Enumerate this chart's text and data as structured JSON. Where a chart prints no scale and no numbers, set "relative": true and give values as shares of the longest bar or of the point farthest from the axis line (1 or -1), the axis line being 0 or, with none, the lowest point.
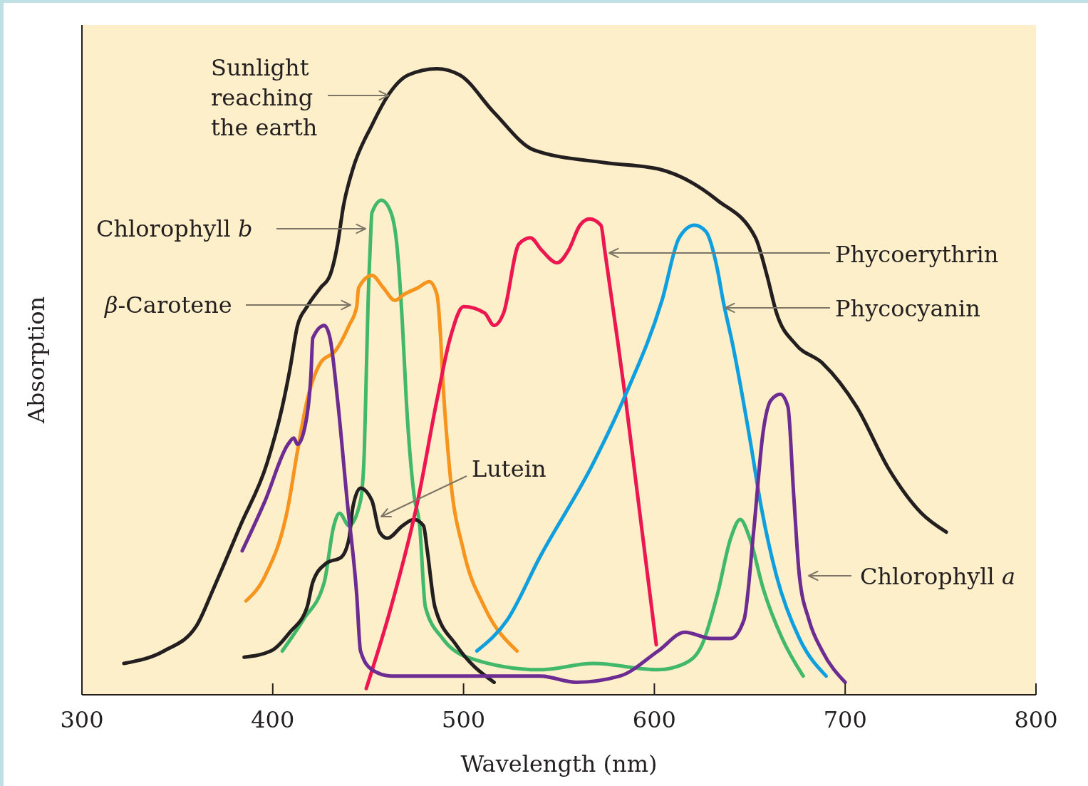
{
  "chart_data": {
    "type": "line",
    "xlabel": "Wavelength (nm)",
    "ylabel": "Absorption",
    "relative": true,
    "xlim": [
      300,
      800
    ],
    "xticks": [
      300,
      400,
      500,
      600,
      700,
      800
    ],
    "series": [
      {
        "name": "Sunlight reaching the earth",
        "color": "#231f20",
        "x": [
          322,
          343,
          360,
          369,
          383,
          397,
          405,
          409,
          413,
          418,
          425,
          430,
          434,
          437,
          442,
          452,
          461,
          471,
          486,
          498,
          516,
          537,
          574,
          602,
          633,
          653,
          659,
          664,
          674,
          688,
          706,
          723,
          740,
          753
        ],
        "values": [
          0.05,
          0.07,
          0.11,
          0.17,
          0.27,
          0.37,
          0.46,
          0.52,
          0.59,
          0.62,
          0.65,
          0.67,
          0.72,
          0.78,
          0.84,
          0.91,
          0.96,
          0.99,
          1.0,
          0.99,
          0.93,
          0.87,
          0.85,
          0.84,
          0.79,
          0.73,
          0.67,
          0.61,
          0.56,
          0.53,
          0.46,
          0.36,
          0.29,
          0.26
        ]
      },
      {
        "name": "Chlorophyll b",
        "color": "#41b86a",
        "x": [
          405,
          416,
          427,
          432,
          435,
          440,
          446,
          448,
          449,
          450,
          451,
          452,
          457,
          462,
          465,
          468,
          470,
          474,
          477,
          480,
          489,
          502,
          540,
          568,
          602,
          616,
          625,
          633,
          640,
          645,
          650,
          657,
          667,
          678
        ],
        "values": [
          0.07,
          0.12,
          0.18,
          0.27,
          0.29,
          0.27,
          0.31,
          0.39,
          0.51,
          0.63,
          0.71,
          0.77,
          0.79,
          0.77,
          0.72,
          0.59,
          0.47,
          0.32,
          0.27,
          0.14,
          0.09,
          0.06,
          0.04,
          0.05,
          0.04,
          0.05,
          0.08,
          0.16,
          0.25,
          0.28,
          0.25,
          0.17,
          0.09,
          0.03
        ]
      },
      {
        "name": "β-Carotene",
        "color": "#f7941d",
        "x": [
          386,
          396,
          408,
          413,
          418,
          425,
          433,
          440,
          444,
          445,
          452,
          458,
          464,
          469,
          476,
          482,
          486,
          488,
          489,
          493,
          500,
          511,
          528
        ],
        "values": [
          0.15,
          0.19,
          0.3,
          0.39,
          0.47,
          0.53,
          0.55,
          0.59,
          0.62,
          0.65,
          0.67,
          0.65,
          0.63,
          0.64,
          0.65,
          0.66,
          0.64,
          0.57,
          0.51,
          0.35,
          0.23,
          0.14,
          0.07
        ]
      },
      {
        "name": "Lutein",
        "color": "#231f20",
        "x": [
          385,
          399,
          409,
          418,
          421,
          428,
          436,
          440,
          442,
          446,
          452,
          456,
          460,
          468,
          474,
          479,
          481,
          485,
          496,
          516
        ],
        "values": [
          0.06,
          0.07,
          0.1,
          0.14,
          0.18,
          0.21,
          0.22,
          0.25,
          0.3,
          0.33,
          0.31,
          0.26,
          0.25,
          0.27,
          0.28,
          0.27,
          0.23,
          0.14,
          0.08,
          0.02
        ]
      },
      {
        "name": "Phycoerythrin",
        "color": "#ec1651",
        "x": [
          449,
          462,
          476,
          486,
          493,
          500,
          511,
          516,
          521,
          529,
          535,
          541,
          549,
          555,
          561,
          566,
          572,
          574,
          581,
          585,
          601
        ],
        "values": [
          0.01,
          0.14,
          0.31,
          0.47,
          0.57,
          0.62,
          0.61,
          0.59,
          0.61,
          0.72,
          0.73,
          0.71,
          0.69,
          0.71,
          0.75,
          0.76,
          0.75,
          0.71,
          0.56,
          0.47,
          0.08
        ]
      },
      {
        "name": "Phycocyanin",
        "color": "#0f9ede",
        "x": [
          507,
          523,
          540,
          568,
          585,
          604,
          613,
          621,
          627,
          633,
          636,
          641,
          650,
          656,
          664,
          676,
          690
        ],
        "values": [
          0.07,
          0.12,
          0.22,
          0.37,
          0.48,
          0.63,
          0.73,
          0.75,
          0.74,
          0.68,
          0.63,
          0.56,
          0.41,
          0.3,
          0.19,
          0.09,
          0.03
        ]
      },
      {
        "name": "Chlorophyll a",
        "color": "#6d2c91",
        "x": [
          384,
          396,
          408,
          411,
          413,
          417,
          420,
          421,
          427,
          430,
          434,
          439,
          444,
          446,
          452,
          462,
          489,
          516,
          540,
          559,
          582,
          602,
          616,
          630,
          640,
          647,
          652,
          657,
          661,
          666,
          670,
          673,
          676,
          681,
          688,
          700
        ],
        "values": [
          0.23,
          0.31,
          0.4,
          0.41,
          0.4,
          0.43,
          0.51,
          0.57,
          0.59,
          0.57,
          0.47,
          0.31,
          0.16,
          0.07,
          0.04,
          0.03,
          0.03,
          0.03,
          0.03,
          0.02,
          0.03,
          0.07,
          0.1,
          0.09,
          0.09,
          0.12,
          0.26,
          0.42,
          0.47,
          0.48,
          0.46,
          0.32,
          0.19,
          0.12,
          0.07,
          0.02
        ]
      }
    ]
  }
}
